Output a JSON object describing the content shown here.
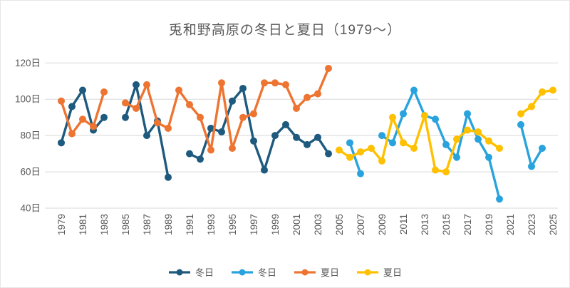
{
  "chart_data": {
    "type": "line",
    "title": "兎和野高原の冬日と夏日（1979～）",
    "xlabel": "",
    "ylabel": "",
    "y_unit": "日",
    "y_ticks": [
      40,
      60,
      80,
      100,
      120
    ],
    "ylim": [
      40,
      120
    ],
    "x_min": 1979,
    "x_max": 2025,
    "x_tick_step": 2,
    "grid": true,
    "legend_position": "bottom",
    "colors": {
      "winter_old": "#1e5a7e",
      "winter_new": "#29a3dd",
      "summer_old": "#ed7431",
      "summer_new": "#ffc000",
      "gridline": "#d9d9d9",
      "axis_text": "#595959",
      "title_text": "#595959"
    },
    "series": [
      {
        "name": "冬日",
        "color": "#1e5a7e",
        "start_year": 1979,
        "values": [
          76,
          96,
          105,
          83,
          90,
          null,
          90,
          108,
          80,
          88,
          57,
          null,
          70,
          67,
          84,
          82,
          99,
          106,
          77,
          61,
          80,
          86,
          79,
          75,
          79,
          70
        ]
      },
      {
        "name": "冬日",
        "color": "#29a3dd",
        "start_year": 2006,
        "values": [
          76,
          59,
          null,
          80,
          76,
          92,
          105,
          91,
          89,
          75,
          68,
          92,
          78,
          68,
          45,
          null,
          86,
          63,
          73
        ]
      },
      {
        "name": "夏日",
        "color": "#ed7431",
        "start_year": 1979,
        "values": [
          99,
          81,
          89,
          85,
          104,
          null,
          98,
          95,
          108,
          87,
          84,
          105,
          97,
          90,
          72,
          109,
          73,
          90,
          92,
          109,
          109,
          108,
          95,
          101,
          103,
          117
        ]
      },
      {
        "name": "夏日",
        "color": "#ffc000",
        "start_year": 2005,
        "values": [
          72,
          68,
          71,
          73,
          66,
          90,
          76,
          73,
          91,
          61,
          60,
          78,
          83,
          82,
          77,
          73,
          null,
          92,
          96,
          104,
          105
        ]
      }
    ]
  }
}
